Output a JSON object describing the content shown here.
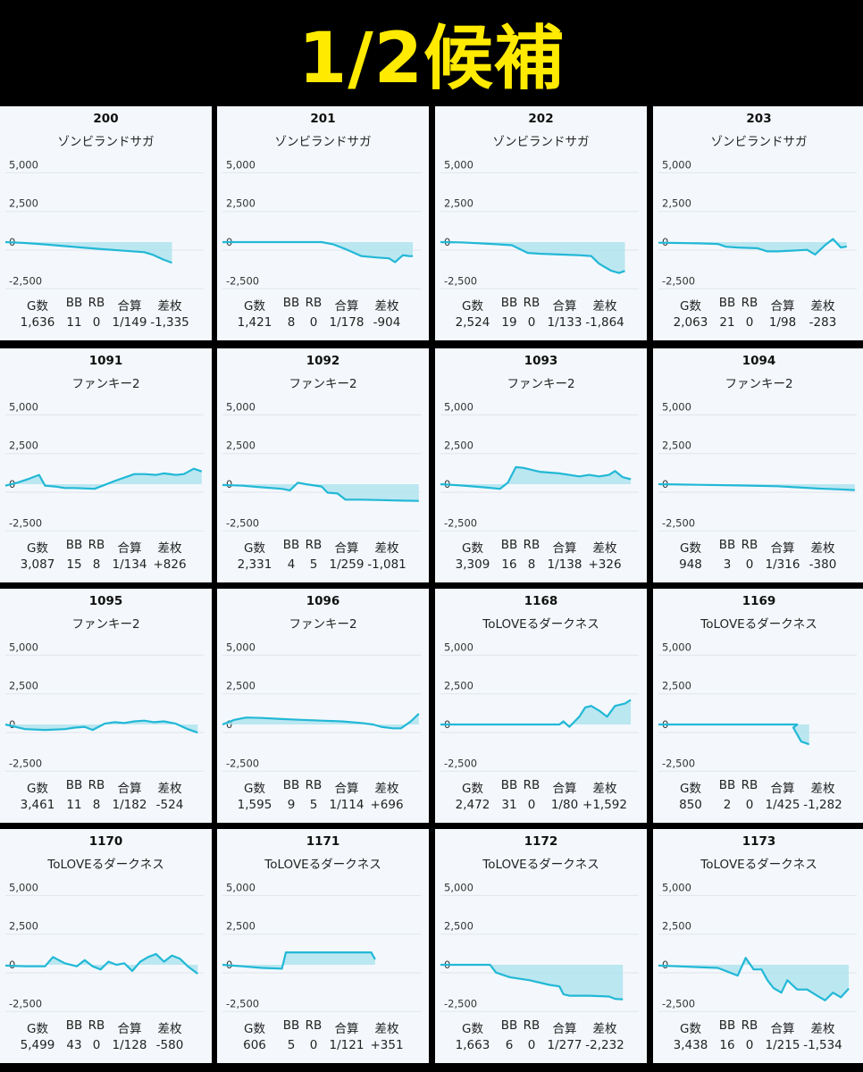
{
  "title": "1/2候補",
  "colors": {
    "banner_bg": "#000000",
    "title": "#ffea00",
    "line": "#22b8d6",
    "fill": "#a8e2ee",
    "card_bg": "#f4f8fc",
    "grid": "#dfe5ea"
  },
  "stat_labels": [
    "G数",
    "BB",
    "RB",
    "合算",
    "差枚"
  ],
  "chart_data": [
    {
      "type": "line",
      "title": "200",
      "subtitle": "ゾンビランドサガ",
      "yticks": [
        "5,000",
        "2,500",
        "0",
        "-2,500"
      ],
      "ylim": [
        -2500,
        5000
      ],
      "x": [
        0,
        0.1,
        0.2,
        0.3,
        0.4,
        0.5,
        0.6,
        0.7,
        0.74,
        0.8,
        0.84
      ],
      "y": [
        0,
        -60,
        -150,
        -260,
        -370,
        -470,
        -560,
        -650,
        -800,
        -1150,
        -1335
      ],
      "stats": {
        "g": "1,636",
        "bb": "11",
        "rb": "0",
        "gosan": "1/149",
        "samai": "-1,335"
      }
    },
    {
      "type": "line",
      "title": "201",
      "subtitle": "ゾンビランドサガ",
      "yticks": [
        "5,000",
        "2,500",
        "0",
        "-2,500"
      ],
      "ylim": [
        -2500,
        5000
      ],
      "x": [
        0,
        0.1,
        0.2,
        0.3,
        0.4,
        0.5,
        0.56,
        0.62,
        0.7,
        0.78,
        0.84,
        0.87,
        0.91,
        0.94,
        0.96
      ],
      "y": [
        0,
        0,
        0,
        0,
        0,
        0,
        -150,
        -450,
        -900,
        -1000,
        -1050,
        -1300,
        -850,
        -900,
        -904
      ],
      "stats": {
        "g": "1,421",
        "bb": "8",
        "rb": "0",
        "gosan": "1/178",
        "samai": "-904"
      }
    },
    {
      "type": "line",
      "title": "202",
      "subtitle": "ゾンビランドサガ",
      "yticks": [
        "5,000",
        "2,500",
        "0",
        "-2,500"
      ],
      "ylim": [
        -2500,
        5000
      ],
      "x": [
        0,
        0.1,
        0.2,
        0.3,
        0.36,
        0.44,
        0.5,
        0.6,
        0.7,
        0.76,
        0.8,
        0.86,
        0.9,
        0.93
      ],
      "y": [
        0,
        -20,
        -80,
        -150,
        -200,
        -700,
        -750,
        -800,
        -850,
        -900,
        -1400,
        -1850,
        -2000,
        -1864
      ],
      "stats": {
        "g": "2,524",
        "bb": "19",
        "rb": "0",
        "gosan": "1/133",
        "samai": "-1,864"
      }
    },
    {
      "type": "line",
      "title": "203",
      "subtitle": "ゾンビランドサガ",
      "yticks": [
        "5,000",
        "2,500",
        "0",
        "-2,500"
      ],
      "ylim": [
        -2500,
        5000
      ],
      "x": [
        0,
        0.1,
        0.2,
        0.3,
        0.34,
        0.4,
        0.5,
        0.55,
        0.6,
        0.68,
        0.75,
        0.79,
        0.84,
        0.88,
        0.92,
        0.95
      ],
      "y": [
        -40,
        -60,
        -80,
        -120,
        -300,
        -350,
        -400,
        -600,
        -600,
        -550,
        -500,
        -800,
        -200,
        200,
        -350,
        -283
      ],
      "stats": {
        "g": "2,063",
        "bb": "21",
        "rb": "0",
        "gosan": "1/98",
        "samai": "-283"
      }
    },
    {
      "type": "line",
      "title": "1091",
      "subtitle": "ファンキー2",
      "yticks": [
        "5,000",
        "2,500",
        "0",
        "-2,500"
      ],
      "ylim": [
        -2500,
        5000
      ],
      "x": [
        0,
        0.06,
        0.12,
        0.17,
        0.2,
        0.25,
        0.3,
        0.35,
        0.45,
        0.55,
        0.65,
        0.7,
        0.76,
        0.8,
        0.86,
        0.9,
        0.95,
        0.99
      ],
      "y": [
        -100,
        100,
        350,
        600,
        -100,
        -150,
        -250,
        -250,
        -300,
        200,
        650,
        650,
        600,
        700,
        600,
        650,
        1000,
        826
      ],
      "stats": {
        "g": "3,087",
        "bb": "15",
        "rb": "8",
        "gosan": "1/134",
        "samai": "+826"
      }
    },
    {
      "type": "line",
      "title": "1092",
      "subtitle": "ファンキー2",
      "yticks": [
        "5,000",
        "2,500",
        "0",
        "-2,500"
      ],
      "ylim": [
        -2500,
        5000
      ],
      "x": [
        0,
        0.1,
        0.2,
        0.3,
        0.34,
        0.38,
        0.42,
        0.5,
        0.53,
        0.58,
        0.62,
        0.7,
        0.8,
        0.9,
        0.99
      ],
      "y": [
        -50,
        -100,
        -200,
        -300,
        -400,
        100,
        0,
        -150,
        -550,
        -600,
        -1000,
        -1000,
        -1030,
        -1060,
        -1081
      ],
      "stats": {
        "g": "2,331",
        "bb": "4",
        "rb": "5",
        "gosan": "1/259",
        "samai": "-1,081"
      }
    },
    {
      "type": "line",
      "title": "1093",
      "subtitle": "ファンキー2",
      "yticks": [
        "5,000",
        "2,500",
        "0",
        "-2,500"
      ],
      "ylim": [
        -2500,
        5000
      ],
      "x": [
        0,
        0.1,
        0.2,
        0.3,
        0.34,
        0.38,
        0.42,
        0.5,
        0.55,
        0.6,
        0.7,
        0.75,
        0.8,
        0.85,
        0.88,
        0.92,
        0.96
      ],
      "y": [
        0,
        -80,
        -180,
        -300,
        100,
        1100,
        1050,
        800,
        750,
        700,
        500,
        600,
        500,
        600,
        850,
        450,
        326
      ],
      "stats": {
        "g": "3,309",
        "bb": "16",
        "rb": "8",
        "gosan": "1/138",
        "samai": "+326"
      }
    },
    {
      "type": "line",
      "title": "1094",
      "subtitle": "ファンキー2",
      "yticks": [
        "5,000",
        "2,500",
        "0",
        "-2,500"
      ],
      "ylim": [
        -2500,
        5000
      ],
      "x": [
        0,
        0.2,
        0.4,
        0.6,
        0.7,
        0.8,
        0.9,
        0.99
      ],
      "y": [
        0,
        -40,
        -80,
        -130,
        -200,
        -280,
        -330,
        -380
      ],
      "stats": {
        "g": "948",
        "bb": "3",
        "rb": "0",
        "gosan": "1/316",
        "samai": "-380"
      }
    },
    {
      "type": "line",
      "title": "1095",
      "subtitle": "ファンキー2",
      "yticks": [
        "5,000",
        "2,500",
        "0",
        "-2,500"
      ],
      "ylim": [
        -2500,
        5000
      ],
      "x": [
        0,
        0.1,
        0.2,
        0.3,
        0.35,
        0.4,
        0.44,
        0.5,
        0.55,
        0.6,
        0.65,
        0.7,
        0.75,
        0.8,
        0.86,
        0.92,
        0.97
      ],
      "y": [
        0,
        -300,
        -350,
        -300,
        -200,
        -150,
        -350,
        50,
        150,
        100,
        200,
        250,
        150,
        200,
        50,
        -300,
        -524
      ],
      "stats": {
        "g": "3,461",
        "bb": "11",
        "rb": "8",
        "gosan": "1/182",
        "samai": "-524"
      }
    },
    {
      "type": "line",
      "title": "1096",
      "subtitle": "ファンキー2",
      "yticks": [
        "5,000",
        "2,500",
        "0",
        "-2,500"
      ],
      "ylim": [
        -2500,
        5000
      ],
      "x": [
        0,
        0.06,
        0.12,
        0.2,
        0.3,
        0.4,
        0.5,
        0.6,
        0.7,
        0.76,
        0.8,
        0.86,
        0.9,
        0.95,
        0.99
      ],
      "y": [
        0,
        300,
        450,
        420,
        350,
        300,
        250,
        200,
        100,
        0,
        -150,
        -250,
        -250,
        200,
        696
      ],
      "stats": {
        "g": "1,595",
        "bb": "9",
        "rb": "5",
        "gosan": "1/114",
        "samai": "+696"
      }
    },
    {
      "type": "line",
      "title": "1168",
      "subtitle": "ToLOVEるダークネス",
      "yticks": [
        "5,000",
        "2,500",
        "0",
        "-2,500"
      ],
      "ylim": [
        -2500,
        5000
      ],
      "x": [
        0,
        0.1,
        0.2,
        0.3,
        0.4,
        0.5,
        0.6,
        0.62,
        0.65,
        0.7,
        0.73,
        0.76,
        0.8,
        0.84,
        0.88,
        0.93,
        0.96
      ],
      "y": [
        0,
        0,
        0,
        0,
        0,
        0,
        0,
        200,
        -150,
        500,
        1100,
        1200,
        900,
        500,
        1200,
        1350,
        1592
      ],
      "stats": {
        "g": "2,472",
        "bb": "31",
        "rb": "0",
        "gosan": "1/80",
        "samai": "+1,592"
      }
    },
    {
      "type": "line",
      "title": "1169",
      "subtitle": "ToLOVEるダークネス",
      "yticks": [
        "5,000",
        "2,500",
        "0",
        "-2,500"
      ],
      "ylim": [
        -2500,
        5000
      ],
      "x": [
        0,
        0.2,
        0.4,
        0.6,
        0.7,
        0.68,
        0.72,
        0.76
      ],
      "y": [
        0,
        0,
        0,
        0,
        0,
        -200,
        -1100,
        -1282
      ],
      "stats": {
        "g": "850",
        "bb": "2",
        "rb": "0",
        "gosan": "1/425",
        "samai": "-1,282"
      }
    },
    {
      "type": "line",
      "title": "1170",
      "subtitle": "ToLOVEるダークネス",
      "yticks": [
        "5,000",
        "2,500",
        "0",
        "-2,500"
      ],
      "ylim": [
        -2500,
        5000
      ],
      "x": [
        0,
        0.1,
        0.2,
        0.24,
        0.3,
        0.36,
        0.4,
        0.44,
        0.48,
        0.52,
        0.56,
        0.6,
        0.64,
        0.68,
        0.72,
        0.76,
        0.8,
        0.84,
        0.88,
        0.92,
        0.97
      ],
      "y": [
        -50,
        -100,
        -100,
        500,
        100,
        -100,
        300,
        -100,
        -300,
        200,
        0,
        100,
        -400,
        200,
        500,
        700,
        200,
        600,
        400,
        -100,
        -580
      ],
      "stats": {
        "g": "5,499",
        "bb": "43",
        "rb": "0",
        "gosan": "1/128",
        "samai": "-580"
      }
    },
    {
      "type": "line",
      "title": "1171",
      "subtitle": "ToLOVEるダークネス",
      "yticks": [
        "5,000",
        "2,500",
        "0",
        "-2,500"
      ],
      "ylim": [
        -2500,
        5000
      ],
      "x": [
        0,
        0.1,
        0.2,
        0.3,
        0.32,
        0.4,
        0.5,
        0.6,
        0.7,
        0.75,
        0.77
      ],
      "y": [
        0,
        -100,
        -200,
        -250,
        800,
        800,
        800,
        800,
        800,
        800,
        351
      ],
      "stats": {
        "g": "606",
        "bb": "5",
        "rb": "0",
        "gosan": "1/121",
        "samai": "+351"
      }
    },
    {
      "type": "line",
      "title": "1172",
      "subtitle": "ToLOVEるダークネス",
      "yticks": [
        "5,000",
        "2,500",
        "0",
        "-2,500"
      ],
      "ylim": [
        -2500,
        5000
      ],
      "x": [
        0,
        0.1,
        0.2,
        0.25,
        0.28,
        0.35,
        0.45,
        0.55,
        0.6,
        0.62,
        0.65,
        0.75,
        0.85,
        0.88,
        0.92
      ],
      "y": [
        0,
        0,
        0,
        0,
        -500,
        -800,
        -1000,
        -1300,
        -1400,
        -1900,
        -2000,
        -2000,
        -2050,
        -2200,
        -2232
      ],
      "stats": {
        "g": "1,663",
        "bb": "6",
        "rb": "0",
        "gosan": "1/277",
        "samai": "-2,232"
      }
    },
    {
      "type": "line",
      "title": "1173",
      "subtitle": "ToLOVEるダークネス",
      "yticks": [
        "5,000",
        "2,500",
        "0",
        "-2,500"
      ],
      "ylim": [
        -2500,
        5000
      ],
      "x": [
        0,
        0.1,
        0.2,
        0.3,
        0.36,
        0.4,
        0.44,
        0.48,
        0.52,
        0.55,
        0.58,
        0.62,
        0.65,
        0.7,
        0.75,
        0.8,
        0.84,
        0.88,
        0.92,
        0.96
      ],
      "y": [
        -50,
        -100,
        -150,
        -200,
        -500,
        -700,
        450,
        -300,
        -300,
        -1000,
        -1500,
        -1800,
        -1000,
        -1600,
        -1600,
        -2000,
        -2300,
        -1800,
        -2100,
        -1534
      ],
      "stats": {
        "g": "3,438",
        "bb": "16",
        "rb": "0",
        "gosan": "1/215",
        "samai": "-1,534"
      }
    }
  ]
}
